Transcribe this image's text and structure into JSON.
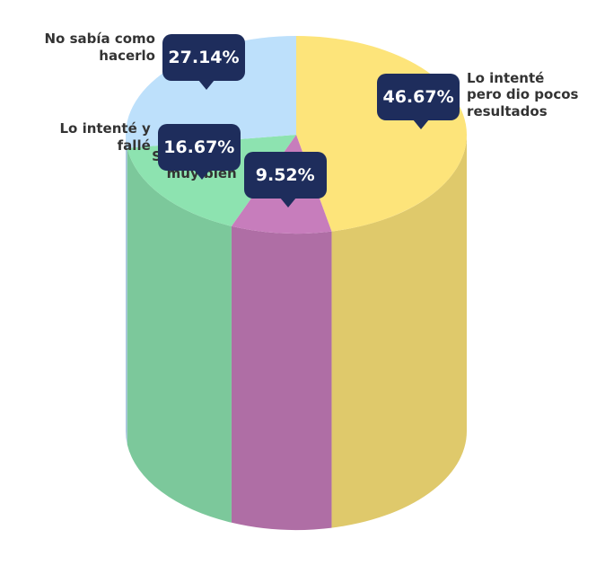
{
  "chart_data": {
    "type": "pie3d",
    "categories": [
      "Lo intenté pero dio pocos resultados",
      "Sí y me fue muy bien",
      "Lo intenté y fallé",
      "No sabía como hacerlo"
    ],
    "values": [
      46.67,
      9.52,
      16.67,
      27.14
    ],
    "value_labels": [
      "46.67%",
      "9.52%",
      "16.67%",
      "27.14%"
    ],
    "colors": [
      "#fde47a",
      "#c77dbc",
      "#8de3b0",
      "#bde0fb"
    ]
  }
}
